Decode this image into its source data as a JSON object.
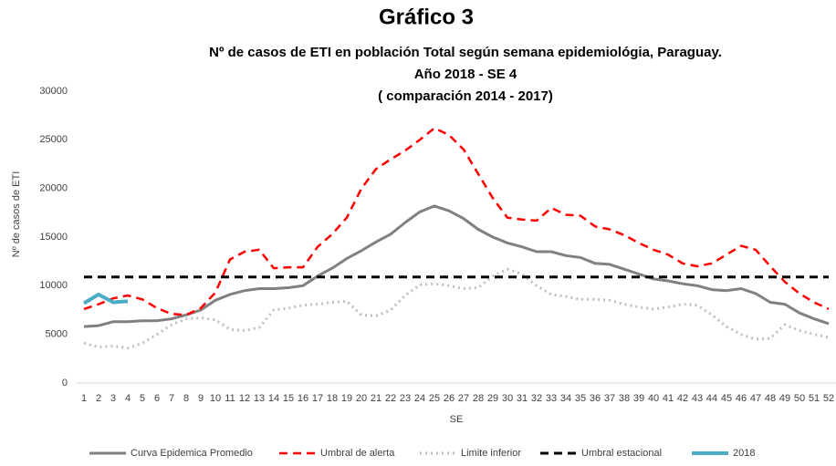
{
  "chart_data": {
    "type": "line",
    "title": "Gráfico 3",
    "subtitle": [
      "Nº de casos de ETI en población Total según semana epidemiológia, Paraguay.",
      "Año 2018 - SE 4",
      "( comparación 2014 - 2017)"
    ],
    "x_label": "SE",
    "y_label": "Nº de casos de ETI",
    "categories": [
      "1",
      "2",
      "3",
      "4",
      "5",
      "6",
      "7",
      "8",
      "9",
      "10",
      "11",
      "12",
      "13",
      "14",
      "15",
      "16",
      "17",
      "18",
      "19",
      "20",
      "21",
      "22",
      "23",
      "24",
      "25",
      "26",
      "27",
      "28",
      "29",
      "30",
      "31",
      "32",
      "33",
      "34",
      "35",
      "36",
      "37",
      "38",
      "39",
      "40",
      "41",
      "42",
      "43",
      "44",
      "45",
      "46",
      "47",
      "48",
      "49",
      "50",
      "51",
      "52"
    ],
    "ylim": [
      0,
      30000
    ],
    "yticks": [
      0,
      5000,
      10000,
      15000,
      20000,
      25000,
      30000
    ],
    "grid": false,
    "legend": "bottom",
    "series": [
      {
        "name": "Curva Epidemica Promedio",
        "color": "#808080",
        "dash": "solid",
        "width": 3,
        "values": [
          5800,
          5900,
          6300,
          6300,
          6400,
          6400,
          6600,
          7000,
          7500,
          8500,
          9100,
          9500,
          9700,
          9700,
          9800,
          10000,
          11000,
          11800,
          12800,
          13600,
          14500,
          15300,
          16500,
          17600,
          18200,
          17700,
          16900,
          15800,
          15000,
          14400,
          14000,
          13500,
          13500,
          13100,
          12900,
          12300,
          12200,
          11700,
          11200,
          10700,
          10500,
          10200,
          10000,
          9600,
          9500,
          9700,
          9200,
          8300,
          8100,
          7200,
          6600,
          6100
        ]
      },
      {
        "name": "Umbral de alerta",
        "color": "#ff0000",
        "dash": "dashed",
        "width": 2.5,
        "values": [
          7600,
          8100,
          8700,
          9000,
          8600,
          7700,
          7100,
          7000,
          7700,
          9300,
          12700,
          13500,
          13700,
          11800,
          11900,
          11900,
          14000,
          15300,
          17000,
          20000,
          22000,
          23000,
          23900,
          25000,
          26200,
          25500,
          24000,
          21500,
          19000,
          17000,
          16800,
          16700,
          18000,
          17300,
          17200,
          16100,
          15800,
          15200,
          14400,
          13700,
          13200,
          12300,
          12000,
          12300,
          13200,
          14100,
          13700,
          12000,
          10400,
          9200,
          8300,
          7600
        ]
      },
      {
        "name": "Limite inferior",
        "color": "#bfbfbf",
        "dash": "dotted",
        "width": 3,
        "values": [
          4100,
          3700,
          3800,
          3600,
          4100,
          5000,
          6000,
          6600,
          6700,
          6500,
          5500,
          5400,
          5700,
          7500,
          7700,
          8000,
          8100,
          8300,
          8400,
          7000,
          6900,
          7500,
          9000,
          10100,
          10200,
          10000,
          9700,
          9800,
          11000,
          11700,
          11200,
          10000,
          9100,
          8900,
          8600,
          8600,
          8500,
          8100,
          7800,
          7600,
          7800,
          8100,
          8000,
          7000,
          5800,
          5000,
          4500,
          4600,
          6000,
          5400,
          5000,
          4700
        ]
      },
      {
        "name": "Umbral estacional",
        "color": "#000000",
        "dash": "dashed",
        "width": 3,
        "values": [
          10900,
          10900,
          10900,
          10900,
          10900,
          10900,
          10900,
          10900,
          10900,
          10900,
          10900,
          10900,
          10900,
          10900,
          10900,
          10900,
          10900,
          10900,
          10900,
          10900,
          10900,
          10900,
          10900,
          10900,
          10900,
          10900,
          10900,
          10900,
          10900,
          10900,
          10900,
          10900,
          10900,
          10900,
          10900,
          10900,
          10900,
          10900,
          10900,
          10900,
          10900,
          10900,
          10900,
          10900,
          10900,
          10900,
          10900,
          10900,
          10900,
          10900,
          10900,
          10900
        ]
      },
      {
        "name": "2018",
        "color": "#4bacc6",
        "dash": "solid",
        "width": 4,
        "values": [
          8200,
          9100,
          8300,
          8400,
          null,
          null,
          null,
          null,
          null,
          null,
          null,
          null,
          null,
          null,
          null,
          null,
          null,
          null,
          null,
          null,
          null,
          null,
          null,
          null,
          null,
          null,
          null,
          null,
          null,
          null,
          null,
          null,
          null,
          null,
          null,
          null,
          null,
          null,
          null,
          null,
          null,
          null,
          null,
          null,
          null,
          null,
          null,
          null,
          null,
          null,
          null,
          null
        ]
      }
    ]
  }
}
